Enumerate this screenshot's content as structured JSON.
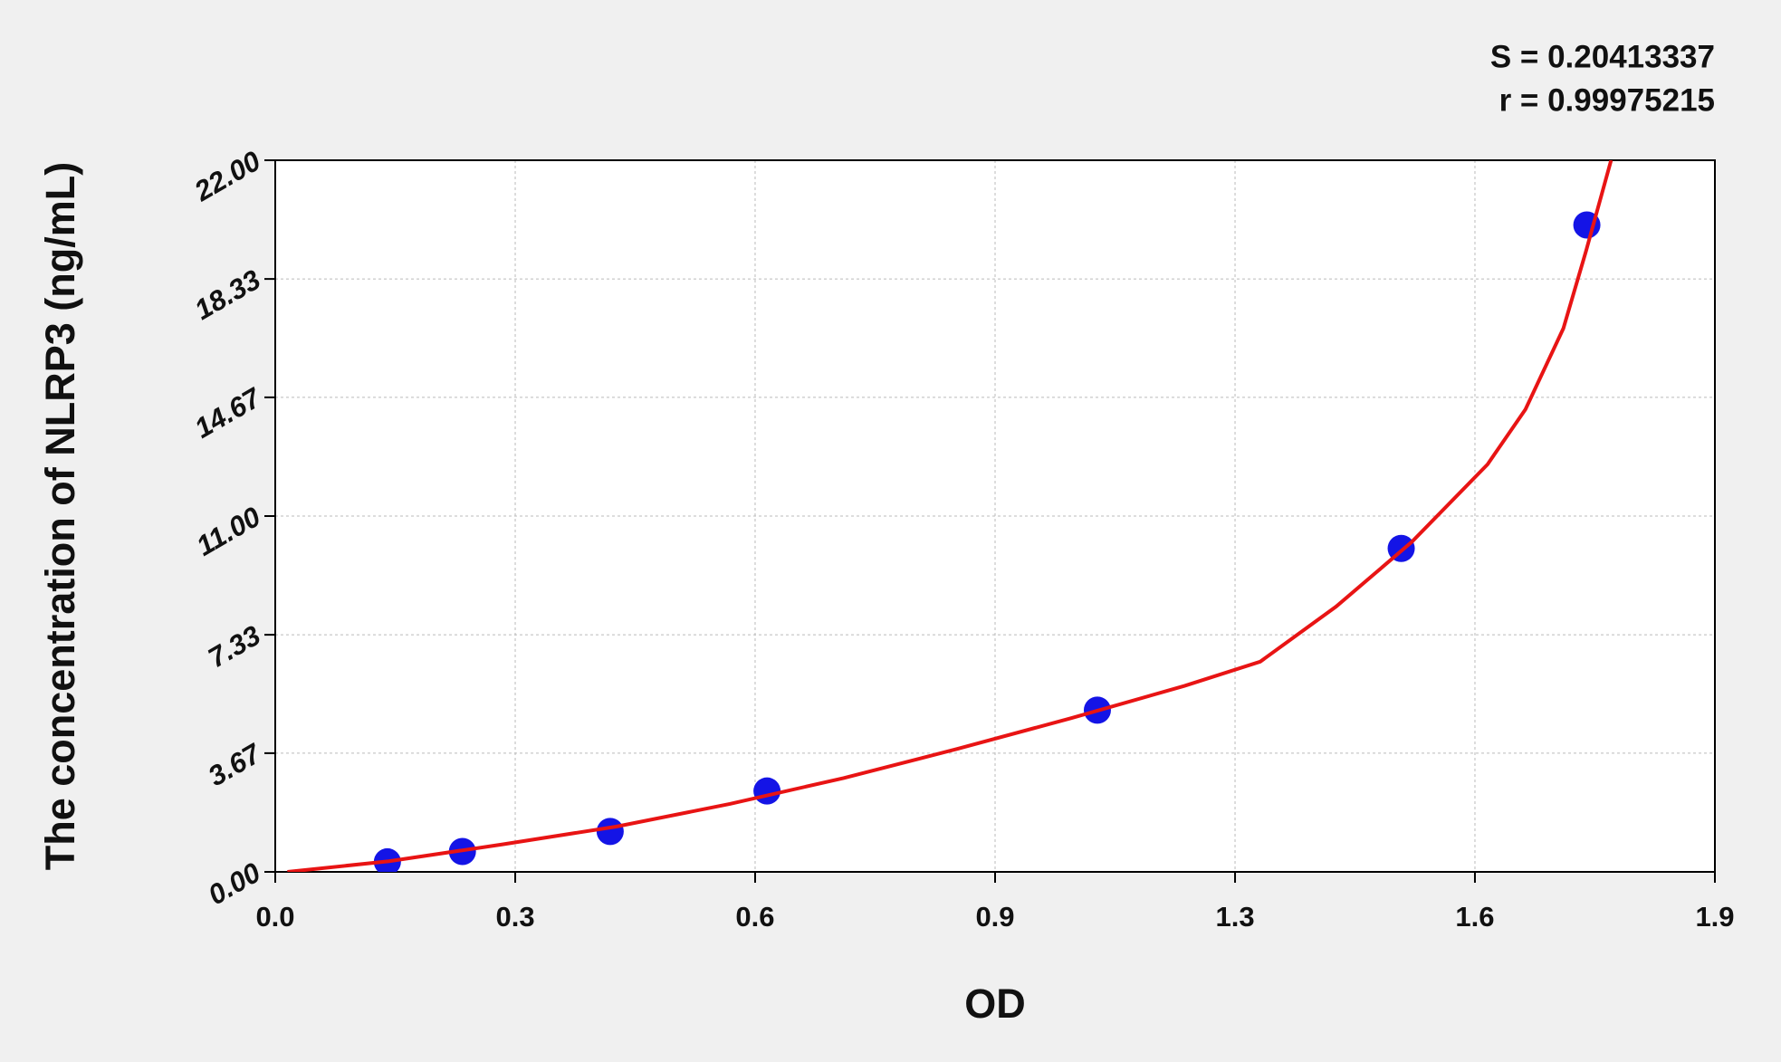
{
  "chart_data": {
    "type": "scatter",
    "annotations": [
      "S = 0.20413337",
      "r = 0.99975215"
    ],
    "xlabel": "OD",
    "ylabel": "The concentration of NLRP3  (ng/mL)",
    "xlim": [
      0,
      1.9
    ],
    "ylim": [
      0,
      22
    ],
    "xticks": [
      {
        "value": 0,
        "label": "0.0"
      },
      {
        "value": 0.3167,
        "label": "0.3"
      },
      {
        "value": 0.6333,
        "label": "0.6"
      },
      {
        "value": 0.95,
        "label": "0.9"
      },
      {
        "value": 1.2667,
        "label": "1.3"
      },
      {
        "value": 1.5833,
        "label": "1.6"
      },
      1.9
    ],
    "yticks": [
      {
        "value": 0,
        "label": "0.00"
      },
      {
        "value": 3.67,
        "label": "3.67"
      },
      {
        "value": 7.33,
        "label": "7.33"
      },
      {
        "value": 11,
        "label": "11.00"
      },
      {
        "value": 14.67,
        "label": "14.67"
      },
      {
        "value": 18.33,
        "label": "18.33"
      },
      {
        "value": 22,
        "label": "22.00"
      }
    ],
    "grid": true,
    "series": [
      {
        "type": "scatter",
        "color": "#1414e6",
        "x": [
          0.148,
          0.247,
          0.442,
          0.649,
          1.085,
          1.486,
          1.731
        ],
        "values": [
          0.31,
          0.63,
          1.25,
          2.5,
          5,
          10,
          20
        ]
      },
      {
        "type": "line",
        "color": "#e81414",
        "x": [
          0.016,
          0.15,
          0.3,
          0.45,
          0.6,
          0.75,
          0.9,
          1.05,
          1.2,
          1.3,
          1.4,
          1.5,
          1.6,
          1.65,
          1.7,
          1.73,
          1.763
        ],
        "values": [
          0,
          0.33,
          0.85,
          1.4,
          2.1,
          2.9,
          3.8,
          4.75,
          5.75,
          6.5,
          8.2,
          10.2,
          12.6,
          14.3,
          16.8,
          19.2,
          22
        ]
      }
    ]
  }
}
